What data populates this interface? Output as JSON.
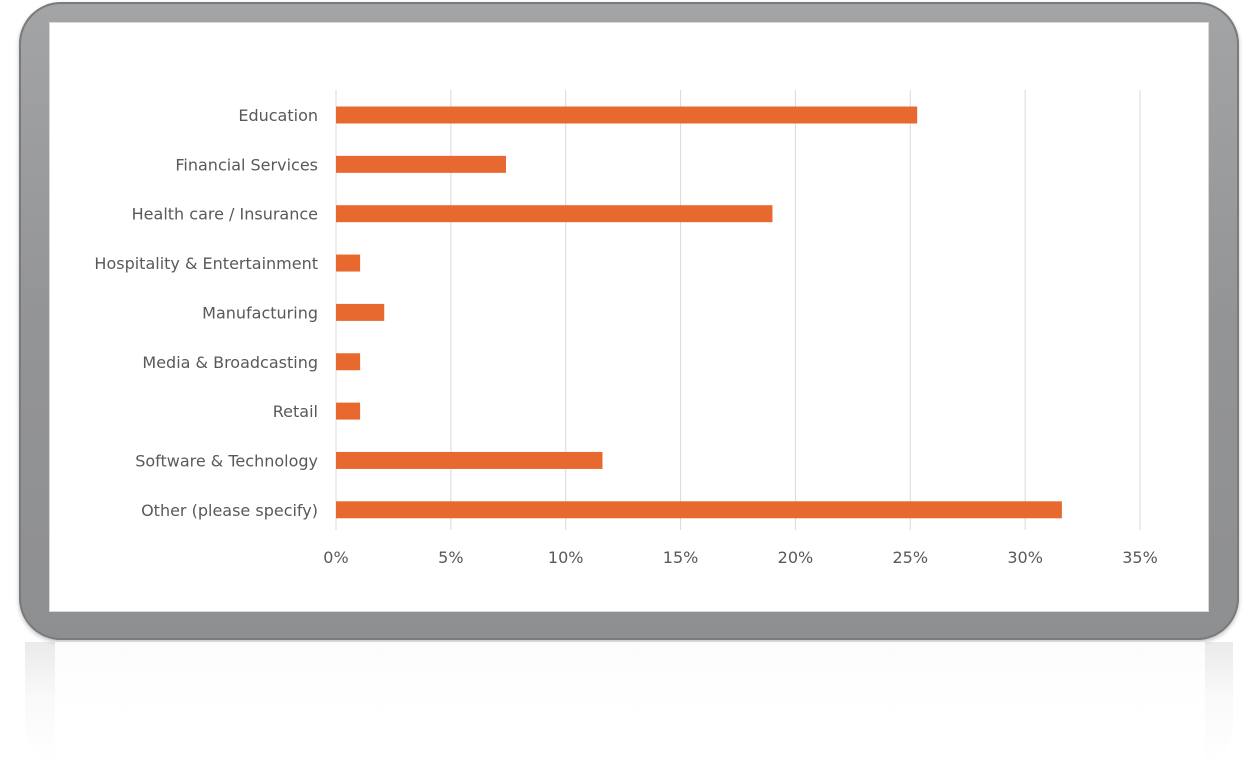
{
  "chart_data": {
    "type": "bar",
    "orientation": "horizontal",
    "categories": [
      "Education",
      "Financial Services",
      "Health care / Insurance",
      "Hospitality & Entertainment",
      "Manufacturing",
      "Media & Broadcasting",
      "Retail",
      "Software & Technology",
      "Other (please specify)"
    ],
    "values": [
      25.3,
      7.4,
      19.0,
      1.05,
      2.1,
      1.05,
      1.05,
      11.6,
      31.6
    ],
    "xlim": [
      0,
      35
    ],
    "xticks": [
      "0%",
      "5%",
      "10%",
      "15%",
      "20%",
      "25%",
      "30%",
      "35%"
    ],
    "xtick_values": [
      0,
      5,
      10,
      15,
      20,
      25,
      30,
      35
    ],
    "title": "",
    "xlabel": "",
    "ylabel": "",
    "grid": "vertical",
    "legend": "none",
    "bar_color": "#E8692F",
    "grid_color": "#D9D9D9"
  }
}
